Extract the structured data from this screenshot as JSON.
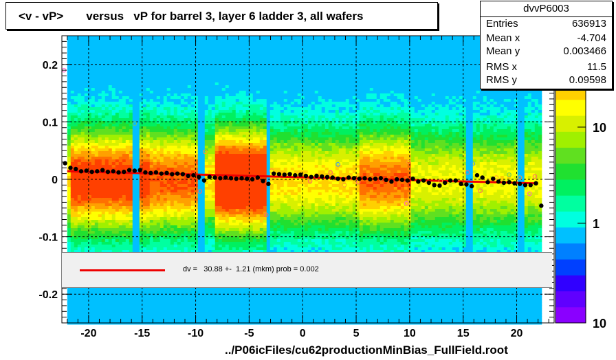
{
  "title": "<v - vP>       versus   vP for barrel 3, layer 6 ladder 3, all wafers",
  "stats": {
    "name": "dvvP6003",
    "rows": [
      {
        "label": "Entries",
        "value": "636913"
      },
      {
        "label": "Mean x",
        "value": "-4.704"
      },
      {
        "label": "Mean y",
        "value": "0.003466"
      },
      {
        "label": "RMS x",
        "value": "11.5"
      },
      {
        "label": "RMS y",
        "value": "0.09598"
      }
    ]
  },
  "fit": {
    "text": "dv =   30.88 +-  1.21 (mkm) prob = 0.002",
    "color": "#ee0000"
  },
  "footer": "../P06icFiles/cu62productionMinBias_FullField.root",
  "palette_labels": [
    "10",
    "1",
    "10"
  ],
  "chart_data": {
    "type": "heatmap",
    "title": "<v - vP>       versus   vP for barrel 3, layer 6 ladder 3, all wafers",
    "xlim": [
      -22.5,
      23.5
    ],
    "ylim": [
      -0.25,
      0.25
    ],
    "x_ticks": [
      -20,
      -15,
      -10,
      -5,
      0,
      5,
      10,
      15,
      20
    ],
    "x_tick_labels": [
      "-20",
      "-15",
      "-10",
      "-5",
      "0",
      "5",
      "10",
      "15",
      "20"
    ],
    "y_ticks": [
      0.2,
      0.1,
      0,
      -0.1,
      -0.2
    ],
    "y_tick_labels": [
      "0.2",
      "0.1",
      "0",
      "-0.1",
      "-0.2"
    ],
    "z_scale": "log",
    "grid": true,
    "fit_line": {
      "x": [
        -22,
        22
      ],
      "y": [
        0.014,
        -0.007
      ],
      "color": "#ee0000"
    },
    "profile_points": {
      "x": [
        -22.2,
        -21.7,
        -21.2,
        -20.7,
        -20.2,
        -19.7,
        -19.2,
        -18.7,
        -18.2,
        -17.7,
        -17.2,
        -16.7,
        -16.2,
        -15.7,
        -15.2,
        -14.7,
        -14.2,
        -13.7,
        -13.2,
        -12.7,
        -12.2,
        -11.7,
        -11.2,
        -10.7,
        -10.2,
        -9.7,
        -9.2,
        -8.7,
        -8.2,
        -7.7,
        -7.2,
        -6.7,
        -6.2,
        -5.7,
        -5.2,
        -4.7,
        -4.2,
        -3.7,
        -3.2,
        -2.7,
        -2.2,
        -1.7,
        -1.2,
        -0.7,
        -0.2,
        0.3,
        0.8,
        1.3,
        1.8,
        2.3,
        2.8,
        3.3,
        3.8,
        4.3,
        4.8,
        5.3,
        5.8,
        6.3,
        6.8,
        7.3,
        7.8,
        8.3,
        8.8,
        9.3,
        9.8,
        10.3,
        10.8,
        11.3,
        11.8,
        12.3,
        12.8,
        13.3,
        13.8,
        14.3,
        14.8,
        15.3,
        15.8,
        16.3,
        16.8,
        17.3,
        17.8,
        18.3,
        18.8,
        19.3,
        19.8,
        20.3,
        20.8,
        21.3,
        21.8,
        22.3
      ],
      "y": [
        0.028,
        0.02,
        0.018,
        0.014,
        0.015,
        0.013,
        0.014,
        0.016,
        0.013,
        0.014,
        0.012,
        0.013,
        0.016,
        0.015,
        0.016,
        0.012,
        0.011,
        0.012,
        0.01,
        0.011,
        0.009,
        0.01,
        0.009,
        0.006,
        0.007,
        0.004,
        -0.002,
        0.004,
        0.003,
        0.002,
        0.003,
        0.002,
        0.001,
        0.002,
        0.001,
        0.0,
        0.003,
        -0.003,
        -0.008,
        0.01,
        0.009,
        0.008,
        0.009,
        0.007,
        0.008,
        0.006,
        0.004,
        0.006,
        0.005,
        0.004,
        0.003,
        0.001,
        0.0,
        0.003,
        0.002,
        0.001,
        0.002,
        0.0,
        0.001,
        0.002,
        -0.001,
        -0.004,
        0.0,
        -0.001,
        -0.002,
        0.001,
        -0.004,
        -0.002,
        -0.006,
        -0.01,
        -0.011,
        -0.006,
        -0.002,
        -0.002,
        -0.008,
        -0.009,
        -0.012,
        0.007,
        0.003,
        -0.005,
        0.001,
        -0.004,
        -0.006,
        -0.005,
        -0.007,
        -0.008,
        -0.01,
        -0.01,
        -0.007,
        -0.046
      ]
    },
    "outlier_points": {
      "x": [
        -22.3,
        -15.7,
        -9.6,
        -9.1,
        -3.4,
        -2.9,
        0.7,
        2.6,
        3.3,
        3.9,
        5.2,
        7.3,
        9.7,
        9.9,
        12.9,
        15.4,
        15.9,
        16.6,
        18.1,
        19.3,
        20.3,
        21.2,
        21.7
      ],
      "y": [
        0.19,
        0.097,
        -0.021,
        0.048,
        -0.062,
        0.015,
        -0.003,
        0.012,
        0.026,
        -0.01,
        -0.005,
        0.001,
        -0.042,
        0.03,
        -0.003,
        0.012,
        0.027,
        -0.02,
        0.003,
        0.008,
        0.003,
        -0.025,
        0.005
      ],
      "colors": [
        "#ff66cc",
        "#66cc66",
        "#ff6666",
        "#ff9933",
        "#ff6666",
        "#ff9933",
        "#ff6666",
        "#ff6666",
        "#3399ff",
        "#ff9933",
        "#ff6666",
        "#ff9933",
        "#ff66cc",
        "#ff9933",
        "#ff9933",
        "#ff6666",
        "#3399ff",
        "#ff6666",
        "#ff9933",
        "#66cc66",
        "#ff9933",
        "#ff66cc",
        "#ff6666"
      ]
    }
  },
  "colors": {
    "frame": "#000000",
    "fit": "#ee0000",
    "palette": [
      "#8a00ff",
      "#6000ff",
      "#3000ff",
      "#0040ff",
      "#0080ff",
      "#00c0ff",
      "#00ffe0",
      "#00ffa0",
      "#00f060",
      "#20e030",
      "#60e020",
      "#a0f000",
      "#d8f000",
      "#ffff00",
      "#ffd000",
      "#ffa000",
      "#ff7000",
      "#ff4000"
    ]
  }
}
